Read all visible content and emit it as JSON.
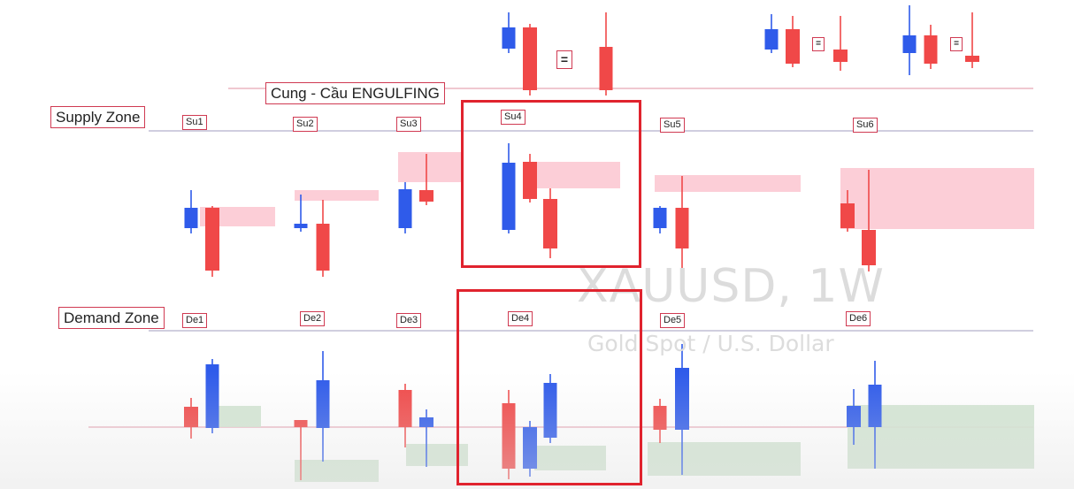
{
  "title": "Cung - Cầu ENGULFING",
  "watermark": {
    "symbol": "XAUUSD, 1W",
    "description": "Gold Spot / U.S. Dollar"
  },
  "equals_sign": "=",
  "colors": {
    "bull": "#2f5bea",
    "bear": "#f04848",
    "supply_zone": "#fbc6d0",
    "demand_zone": "#cfe3cf",
    "frame": "#e0232e",
    "level_line": "#e6a6b4",
    "divider": "#b4b0cc"
  },
  "supply": {
    "label": "Supply Zone",
    "markers": [
      "Su1",
      "Su2",
      "Su3",
      "Su4",
      "Su5",
      "Su6"
    ]
  },
  "demand": {
    "label": "Demand Zone",
    "markers": [
      "De1",
      "De2",
      "De3",
      "De4",
      "De5",
      "De6"
    ]
  }
}
